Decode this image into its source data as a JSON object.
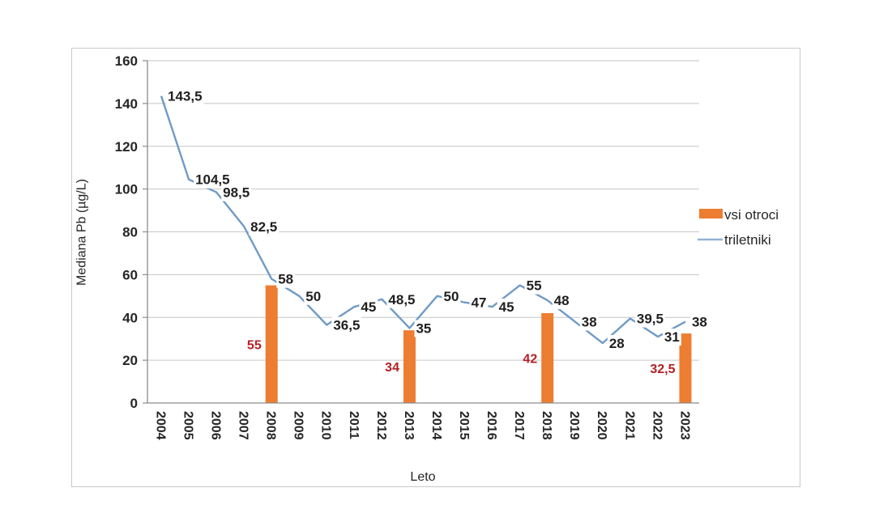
{
  "chart_data": {
    "type": "combo",
    "title": "",
    "xlabel": "Leto",
    "ylabel": "Mediana Pb (µg/L)",
    "ylim": [
      0,
      160
    ],
    "ytick_step": 20,
    "yticks": [
      0,
      20,
      40,
      60,
      80,
      100,
      120,
      140,
      160
    ],
    "grid": true,
    "legend_position": "right",
    "categories": [
      "2004",
      "2005",
      "2006",
      "2007",
      "2008",
      "2009",
      "2010",
      "2011",
      "2012",
      "2013",
      "2014",
      "2015",
      "2016",
      "2017",
      "2018",
      "2019",
      "2020",
      "2021",
      "2022",
      "2023"
    ],
    "series": [
      {
        "name": "vsi otroci",
        "type": "bar",
        "color": "#ED7D31",
        "label_color": "#B42025",
        "values": [
          null,
          null,
          null,
          null,
          55,
          null,
          null,
          null,
          null,
          34,
          null,
          null,
          null,
          null,
          42,
          null,
          null,
          null,
          null,
          32.5
        ],
        "labels": [
          null,
          null,
          null,
          null,
          "55",
          null,
          null,
          null,
          null,
          "34",
          null,
          null,
          null,
          null,
          "42",
          null,
          null,
          null,
          null,
          "32,5"
        ]
      },
      {
        "name": "triletniki",
        "type": "line",
        "color": "#6F9BC6",
        "label_color": "#1F1F1F",
        "values": [
          143.5,
          104.5,
          98.5,
          82.5,
          58,
          50,
          36.5,
          45,
          48.5,
          35,
          50,
          47,
          45,
          55,
          48,
          38,
          28,
          39.5,
          31,
          38
        ],
        "labels": [
          "143,5",
          "104,5",
          "98,5",
          "82,5",
          "58",
          "50",
          "36,5",
          "45",
          "48,5",
          "35",
          "50",
          "47",
          "45",
          "55",
          "48",
          "38",
          "28",
          "39,5",
          "31",
          "38"
        ]
      }
    ],
    "colors": {
      "gridline": "#C6C6C6",
      "axis": "#8C8C8C",
      "frame": "#C9C9C9",
      "tick_text": "#262626"
    }
  }
}
